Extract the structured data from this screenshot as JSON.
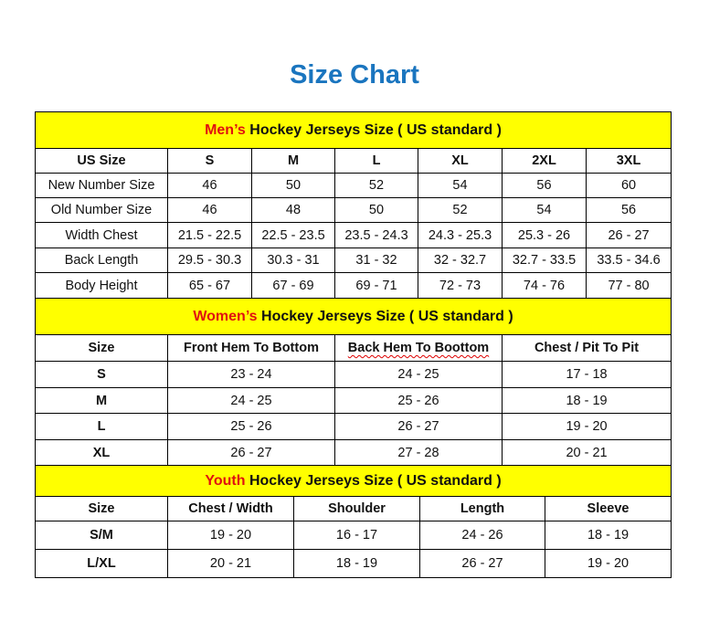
{
  "title": "Size Chart",
  "colors": {
    "title": "#1a75bf",
    "header_bg": "#ffff00",
    "accent": "#e01010"
  },
  "men": {
    "heading_accent": "Men’s",
    "heading_rest": " Hockey Jerseys Size ( US standard )",
    "columns": [
      "US Size",
      "S",
      "M",
      "L",
      "XL",
      "2XL",
      "3XL"
    ],
    "rows": [
      [
        "New Number Size",
        "46",
        "50",
        "52",
        "54",
        "56",
        "60"
      ],
      [
        "Old Number Size",
        "46",
        "48",
        "50",
        "52",
        "54",
        "56"
      ],
      [
        "Width Chest",
        "21.5 - 22.5",
        "22.5 - 23.5",
        "23.5 - 24.3",
        "24.3 - 25.3",
        "25.3 - 26",
        "26 - 27"
      ],
      [
        "Back Length",
        "29.5 - 30.3",
        "30.3 - 31",
        "31 - 32",
        "32 - 32.7",
        "32.7 - 33.5",
        "33.5 - 34.6"
      ],
      [
        "Body Height",
        "65 - 67",
        "67 - 69",
        "69 - 71",
        "72 - 73",
        "74 - 76",
        "77 - 80"
      ]
    ]
  },
  "women": {
    "heading_accent": "Women’s",
    "heading_rest": " Hockey Jerseys Size ( US standard )",
    "columns": [
      "Size",
      "Front Hem To Bottom",
      "Back Hem To Boottom",
      "Chest / Pit To Pit"
    ],
    "rows": [
      [
        "S",
        "23 - 24",
        "24 - 25",
        "17 - 18"
      ],
      [
        "M",
        "24 - 25",
        "25 - 26",
        "18 - 19"
      ],
      [
        "L",
        "25 - 26",
        "26 - 27",
        "19 - 20"
      ],
      [
        "XL",
        "26 - 27",
        "27 - 28",
        "20 - 21"
      ]
    ]
  },
  "youth": {
    "heading_accent": "Youth",
    "heading_rest": " Hockey Jerseys Size ( US standard )",
    "columns": [
      "Size",
      "Chest / Width",
      "Shoulder",
      "Length",
      "Sleeve"
    ],
    "rows": [
      [
        "S/M",
        "19 - 20",
        "16 - 17",
        "24 - 26",
        "18 - 19"
      ],
      [
        "L/XL",
        "20 - 21",
        "18 - 19",
        "26 - 27",
        "19 - 20"
      ]
    ]
  }
}
